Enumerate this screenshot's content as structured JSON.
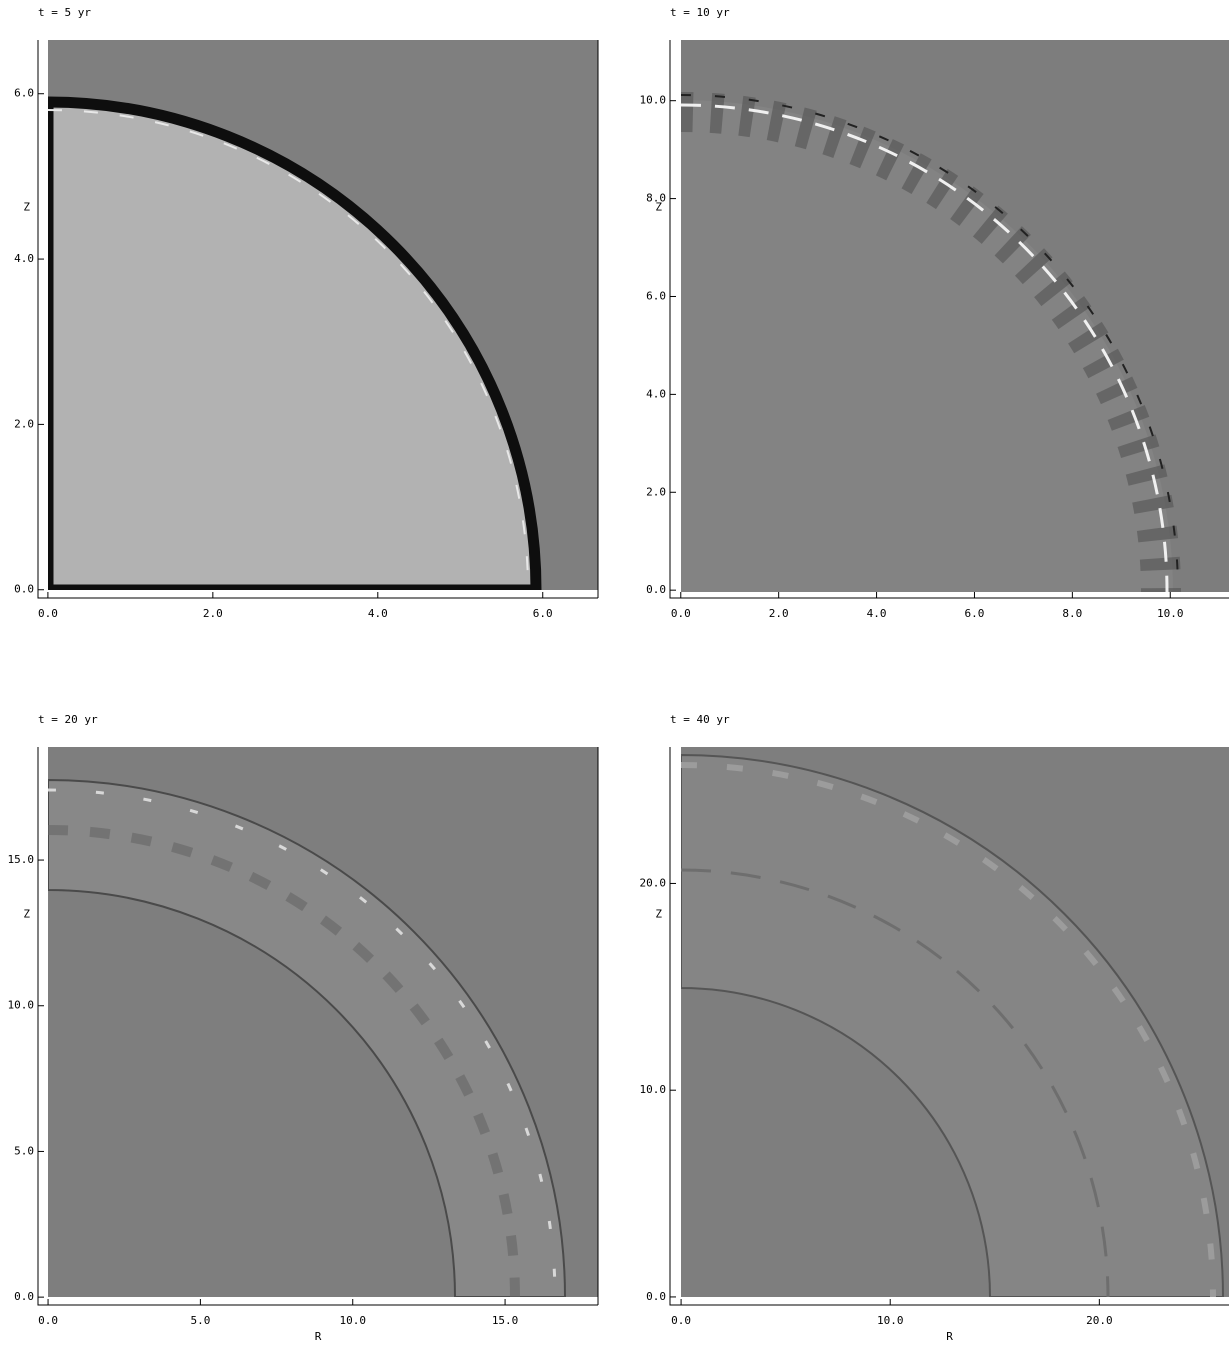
{
  "chart_data": [
    {
      "type": "image",
      "title": "t = 5 yr",
      "ylabel": "Z",
      "xlim": [
        -0.12,
        6.67
      ],
      "ylim": [
        -0.1,
        6.65
      ],
      "xticks": [
        {
          "value": 0,
          "label": "0.0"
        },
        {
          "value": 2,
          "label": "2.0"
        },
        {
          "value": 4,
          "label": "4.0"
        },
        {
          "value": 6,
          "label": "6.0"
        }
      ],
      "yticks": [
        {
          "value": 0,
          "label": "0.0"
        },
        {
          "value": 2,
          "label": "2.0"
        },
        {
          "value": 4,
          "label": "4.0"
        },
        {
          "value": 6,
          "label": "6.0"
        }
      ]
    },
    {
      "type": "image",
      "title": "t = 10 yr",
      "ylabel": "Z",
      "xlim": [
        -0.22,
        11.2
      ],
      "ylim": [
        -0.16,
        11.24
      ],
      "xticks": [
        {
          "value": 0,
          "label": "0.0"
        },
        {
          "value": 2,
          "label": "2.0"
        },
        {
          "value": 4,
          "label": "4.0"
        },
        {
          "value": 6,
          "label": "6.0"
        },
        {
          "value": 8,
          "label": "8.0"
        },
        {
          "value": 10,
          "label": "10.0"
        }
      ],
      "yticks": [
        {
          "value": 0,
          "label": "0.0"
        },
        {
          "value": 2,
          "label": "2.0"
        },
        {
          "value": 4,
          "label": "4.0"
        },
        {
          "value": 6,
          "label": "6.0"
        },
        {
          "value": 8,
          "label": "8.0"
        },
        {
          "value": 10,
          "label": "10.0"
        }
      ]
    },
    {
      "type": "image",
      "title": "t = 20 yr",
      "xlabel": "R",
      "ylabel": "Z",
      "xlim": [
        -0.33,
        18.05
      ],
      "ylim": [
        -0.27,
        18.88
      ],
      "xticks": [
        {
          "value": 0,
          "label": "0.0"
        },
        {
          "value": 5,
          "label": "5.0"
        },
        {
          "value": 10,
          "label": "10.0"
        },
        {
          "value": 15,
          "label": "15.0"
        }
      ],
      "yticks": [
        {
          "value": 0,
          "label": "0.0"
        },
        {
          "value": 5,
          "label": "5.0"
        },
        {
          "value": 10,
          "label": "10.0"
        },
        {
          "value": 15,
          "label": "15.0"
        }
      ]
    },
    {
      "type": "image",
      "title": "t = 40 yr",
      "xlabel": "R",
      "ylabel": "Z",
      "xlim": [
        -0.53,
        26.2
      ],
      "ylim": [
        -0.39,
        26.6
      ],
      "xticks": [
        {
          "value": 0,
          "label": "0.0"
        },
        {
          "value": 10,
          "label": "10.0"
        },
        {
          "value": 20,
          "label": "20.0"
        }
      ],
      "yticks": [
        {
          "value": 0,
          "label": "0.0"
        },
        {
          "value": 10,
          "label": "10.0"
        },
        {
          "value": 20,
          "label": "20.0"
        }
      ]
    }
  ]
}
